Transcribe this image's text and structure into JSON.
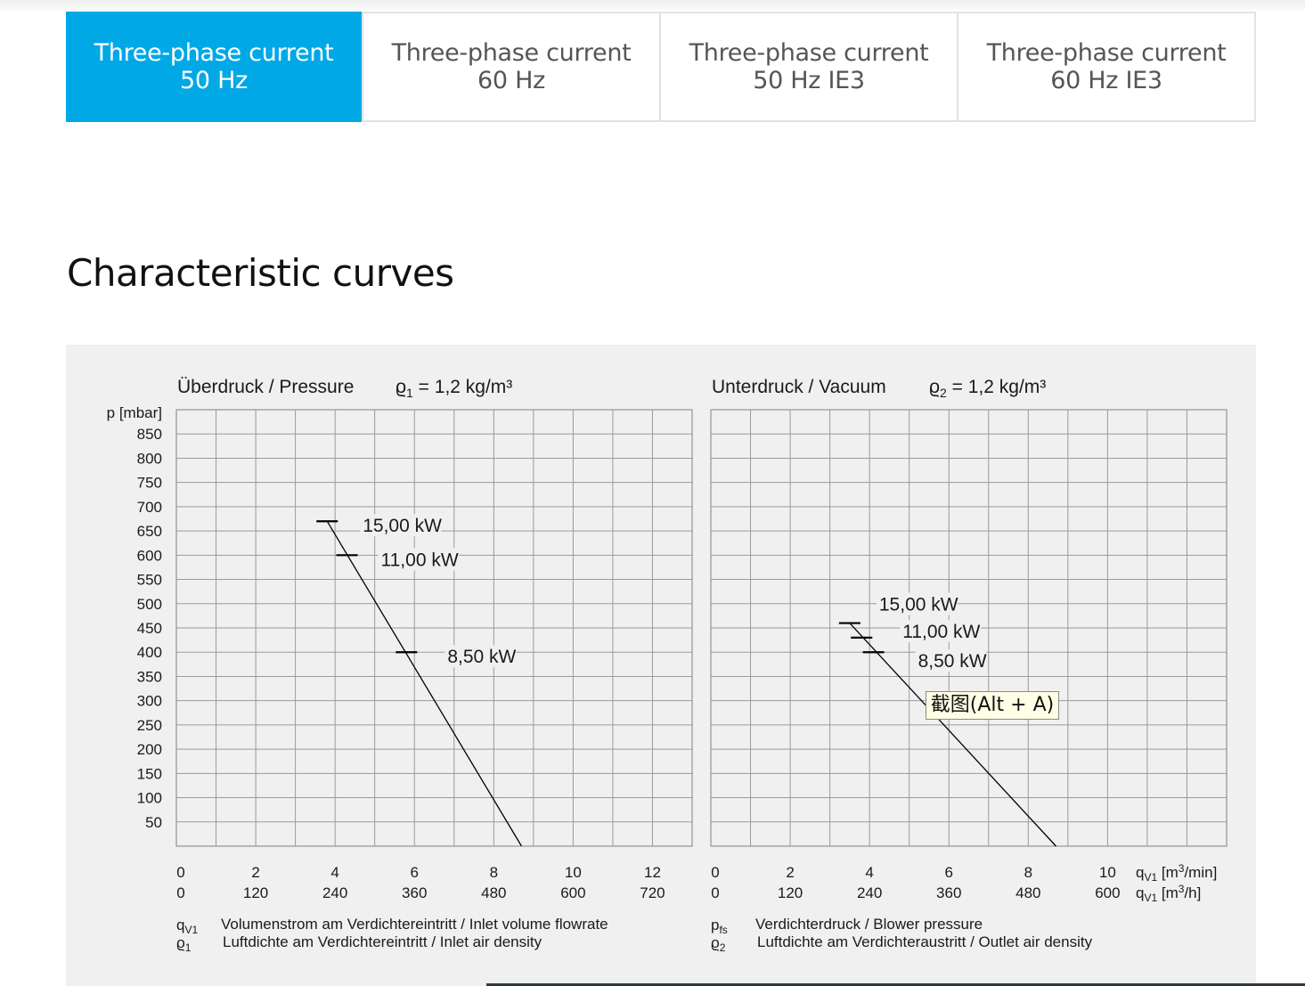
{
  "tabs": [
    {
      "line1": "Three-phase current",
      "line2": "50 Hz",
      "active": true
    },
    {
      "line1": "Three-phase current",
      "line2": "60 Hz",
      "active": false
    },
    {
      "line1": "Three-phase current",
      "line2": "50 Hz IE3",
      "active": false
    },
    {
      "line1": "Three-phase current",
      "line2": "60 Hz IE3",
      "active": false
    }
  ],
  "section_title": "Characteristic curves",
  "tooltip": "截图(Alt + A)",
  "colors": {
    "accent": "#00a8e6",
    "chart_background": "#f0f0f0",
    "grid": "#9a9a9a",
    "curve": "#000000"
  },
  "chart_data": [
    {
      "type": "line",
      "title": "Überdruck / Pressure",
      "density_symbol": "ϱ",
      "density_sub": "1",
      "density_value": " = 1,2 kg/m³",
      "ylabel": "p [mbar]",
      "ylim": [
        0,
        900
      ],
      "yticks": [
        50,
        100,
        150,
        200,
        250,
        300,
        350,
        400,
        450,
        500,
        550,
        600,
        650,
        700,
        750,
        800,
        850
      ],
      "xlim": [
        0,
        13
      ],
      "grid": true,
      "xticks_primary": [
        "0",
        "2",
        "4",
        "6",
        "8",
        "10",
        "12"
      ],
      "xticks_secondary": [
        "0",
        "120",
        "240",
        "360",
        "480",
        "600",
        "720"
      ],
      "series": [
        {
          "x": [
            3.8,
            8.7
          ],
          "y": [
            670,
            0
          ]
        }
      ],
      "markers": [
        {
          "x": 3.8,
          "y": 670,
          "label": "15,00 kW"
        },
        {
          "x": 4.3,
          "y": 600,
          "label": "11,00 kW"
        },
        {
          "x": 5.8,
          "y": 400,
          "label": "8,50 kW"
        }
      ],
      "legend": [
        {
          "sym": "q",
          "sub": "V1",
          "text": "Volumenstrom am Verdichtereintritt / Inlet volume flowrate"
        },
        {
          "sym": "ϱ",
          "sub": "1",
          "text": "Luftdichte am Verdichtereintritt / Inlet air density"
        }
      ]
    },
    {
      "type": "line",
      "title": "Unterdruck / Vacuum",
      "density_symbol": "ϱ",
      "density_sub": "2",
      "density_value": " = 1,2 kg/m³",
      "ylim": [
        0,
        900
      ],
      "xlim": [
        0,
        13
      ],
      "grid": true,
      "xticks_primary": [
        "0",
        "2",
        "4",
        "6",
        "8",
        "10"
      ],
      "xticks_secondary": [
        "0",
        "120",
        "240",
        "360",
        "480",
        "600"
      ],
      "x_unit_primary": {
        "sym": "q",
        "sub": "V1",
        "unit": " [m",
        "sup": "3",
        "tail": "/min]"
      },
      "x_unit_secondary": {
        "sym": "q",
        "sub": "V1",
        "unit": " [m",
        "sup": "3",
        "tail": "/h]"
      },
      "series": [
        {
          "x": [
            3.5,
            8.7
          ],
          "y": [
            460,
            0
          ]
        }
      ],
      "markers": [
        {
          "x": 3.5,
          "y": 460,
          "label": "15,00 kW"
        },
        {
          "x": 3.8,
          "y": 430,
          "label": "11,00 kW"
        },
        {
          "x": 4.1,
          "y": 400,
          "label": "8,50 kW"
        }
      ],
      "legend": [
        {
          "sym": "p",
          "sub": "fs",
          "text": "Verdichterdruck / Blower pressure"
        },
        {
          "sym": "ϱ",
          "sub": "2",
          "text": "Luftdichte am Verdichteraustritt / Outlet air density"
        }
      ]
    }
  ]
}
